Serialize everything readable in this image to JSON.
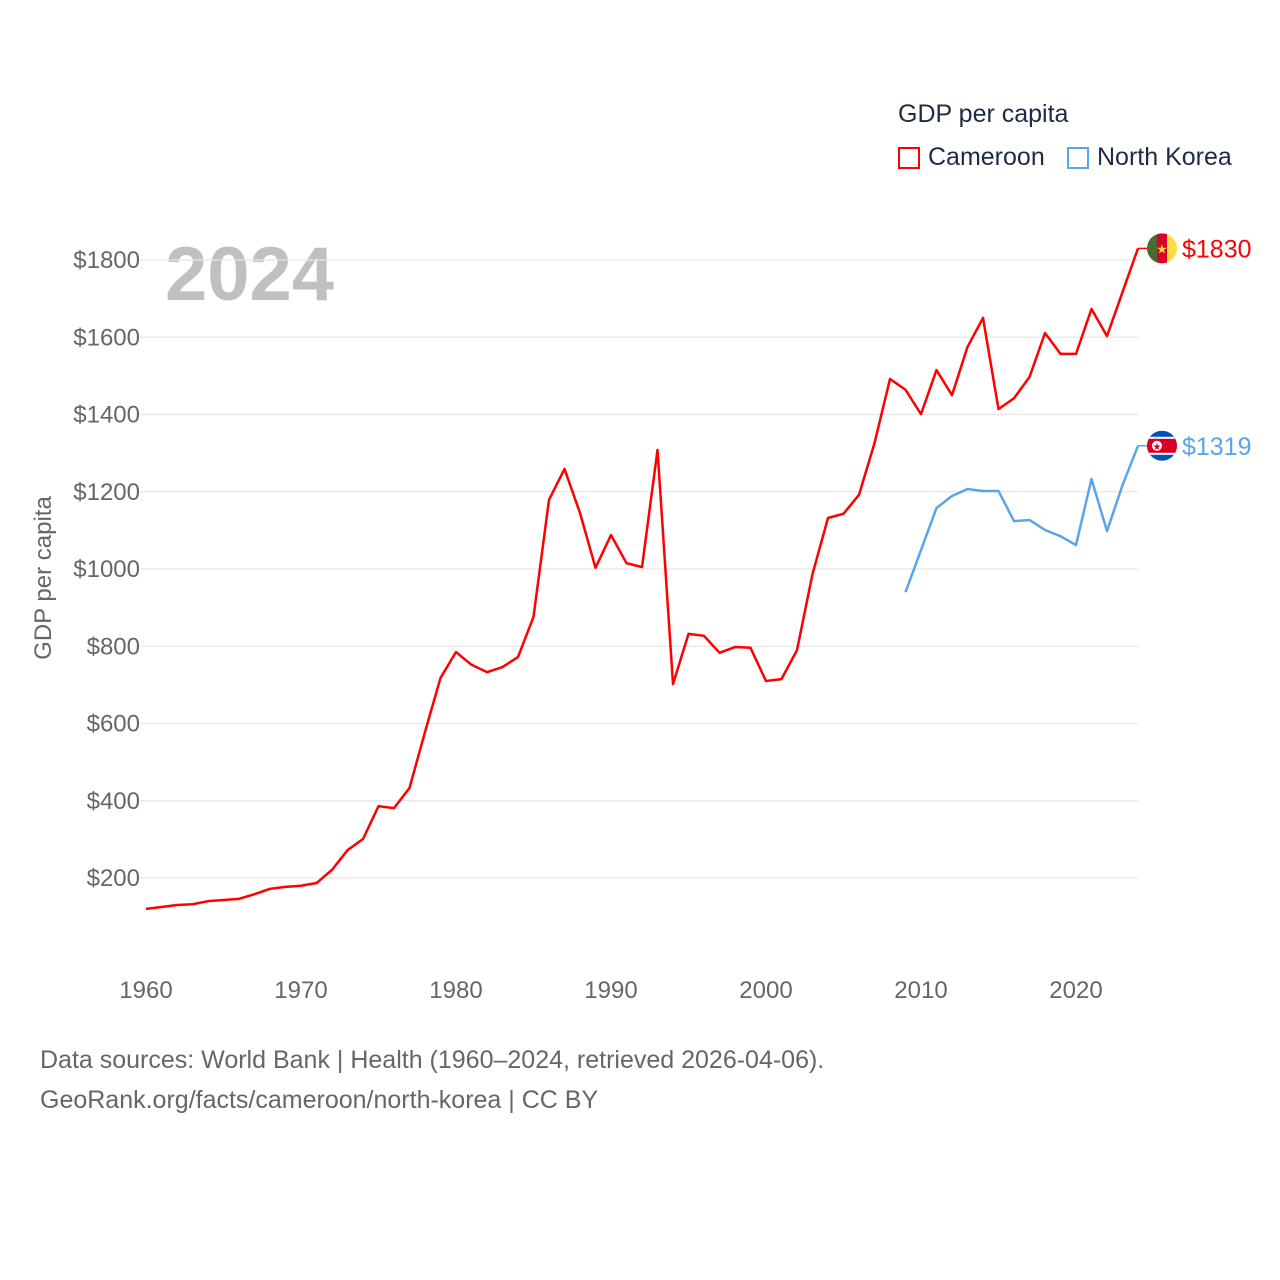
{
  "legend": {
    "title": "GDP per capita",
    "items": [
      {
        "label": "Cameroon",
        "color": "#ff0000"
      },
      {
        "label": "North Korea",
        "color": "#5aa5ea"
      }
    ]
  },
  "footer": {
    "line1": "Data sources: World Bank | Health (1960–2024, retrieved 2026-04-06).",
    "line2": "GeoRank.org/facts/cameroon/north-korea | CC BY"
  },
  "chart_data": {
    "type": "line",
    "title": "GDP per capita",
    "year_label": "2024",
    "xlabel": "",
    "ylabel": "GDP per capita",
    "xlim": [
      1960,
      2024
    ],
    "ylim": [
      0,
      1900
    ],
    "x_ticks": [
      1960,
      1970,
      1980,
      1990,
      2000,
      2010,
      2020
    ],
    "y_ticks": [
      200,
      400,
      600,
      800,
      1000,
      1200,
      1400,
      1600,
      1800
    ],
    "y_tick_labels": [
      "$200",
      "$400",
      "$600",
      "$800",
      "$1000",
      "$1200",
      "$1400",
      "$1600",
      "$1800"
    ],
    "grid": true,
    "legend_position": "top-right",
    "series": [
      {
        "name": "Cameroon",
        "color": "#ff0000",
        "end_label": "$1830",
        "flag": "cameroon-flag",
        "start_year": 1960,
        "values": [
          120,
          125,
          130,
          132,
          140,
          143,
          146,
          158,
          172,
          177,
          180,
          187,
          221,
          272,
          301,
          386,
          381,
          433,
          578,
          718,
          785,
          752,
          733,
          746,
          772,
          876,
          1179,
          1259,
          1145,
          1003,
          1088,
          1015,
          1005,
          1308,
          702,
          832,
          827,
          783,
          798,
          796,
          710,
          715,
          790,
          987,
          1132,
          1143,
          1192,
          1326,
          1492,
          1464,
          1401,
          1515,
          1450,
          1575,
          1650,
          1414,
          1442,
          1497,
          1611,
          1557,
          1557,
          1673,
          1603,
          1717,
          1830
        ]
      },
      {
        "name": "North Korea",
        "color": "#5aa5ea",
        "end_label": "$1319",
        "flag": "north-korea-flag",
        "start_year": 2009,
        "values": [
          940,
          1049,
          1158,
          1189,
          1207,
          1202,
          1202,
          1124,
          1127,
          1101,
          1085,
          1062,
          1233,
          1098,
          1217,
          1319
        ]
      }
    ]
  }
}
